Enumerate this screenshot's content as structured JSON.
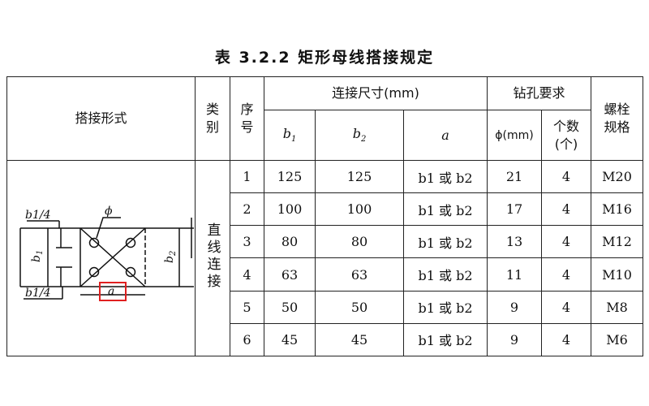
{
  "title": "表 3.2.2   矩形母线搭接规定",
  "header": {
    "form": "搭接形式",
    "category": "类别",
    "seq": "序号",
    "dims": "连接尺寸(mm)",
    "b1": "b",
    "b2": "b",
    "a": "a",
    "drill": "钻孔要求",
    "phi": "ϕ(mm)",
    "count": "个数(个)",
    "bolt": "螺栓规格"
  },
  "category_value": "直线连接",
  "diagram_labels": {
    "b1_4_top": "b1/4",
    "b1_4_bottom": "b1/4",
    "b1": "b1",
    "b2": "b2",
    "phi": "ϕ",
    "a": "a",
    "highlight_color": "#e02020"
  },
  "rows": [
    {
      "seq": "1",
      "b1": "125",
      "b2": "125",
      "a": "b1 或 b2",
      "phi": "21",
      "count": "4",
      "bolt": "M20"
    },
    {
      "seq": "2",
      "b1": "100",
      "b2": "100",
      "a": "b1 或 b2",
      "phi": "17",
      "count": "4",
      "bolt": "M16"
    },
    {
      "seq": "3",
      "b1": "80",
      "b2": "80",
      "a": "b1 或 b2",
      "phi": "13",
      "count": "4",
      "bolt": "M12"
    },
    {
      "seq": "4",
      "b1": "63",
      "b2": "63",
      "a": "b1 或 b2",
      "phi": "11",
      "count": "4",
      "bolt": "M10"
    },
    {
      "seq": "5",
      "b1": "50",
      "b2": "50",
      "a": "b1 或 b2",
      "phi": "9",
      "count": "4",
      "bolt": "M8"
    },
    {
      "seq": "6",
      "b1": "45",
      "b2": "45",
      "a": "b1 或 b2",
      "phi": "9",
      "count": "4",
      "bolt": "M6"
    }
  ]
}
